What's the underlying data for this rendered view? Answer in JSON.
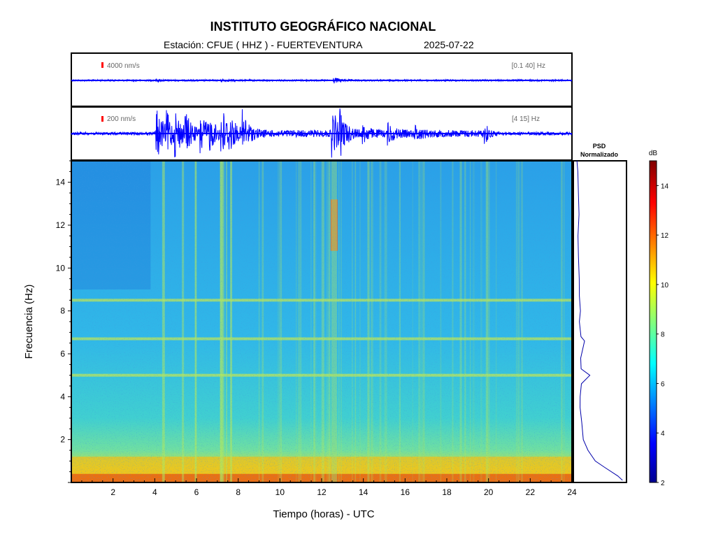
{
  "title": "INSTITUTO GEOGRÁFICO NACIONAL",
  "subtitle": "Estación:  CFUE ( HHZ ) - FUERTEVENTURA",
  "date": "2025-07-22",
  "chart_data": [
    {
      "type": "line",
      "name": "seismogram-broadband",
      "scale_label": "4000 nm/s",
      "filter_label": "[0.1 40] Hz",
      "x_range": [
        0,
        24
      ],
      "trace_color": "#0000ff",
      "scale_color": "#ff0000",
      "events": [
        {
          "t": 12.6,
          "amp": 0.12
        },
        {
          "t": 4.1,
          "amp": 0.05
        },
        {
          "t": 7.2,
          "amp": 0.05
        }
      ]
    },
    {
      "type": "line",
      "name": "seismogram-filtered",
      "scale_label": "200 nm/s",
      "filter_label": "[4 15] Hz",
      "x_range": [
        0,
        24
      ],
      "trace_color": "#0000ff",
      "events": [
        {
          "t": 4.1,
          "amp": 1.0
        },
        {
          "t": 4.6,
          "amp": 0.6
        },
        {
          "t": 5.0,
          "amp": 0.7
        },
        {
          "t": 5.5,
          "amp": 0.6
        },
        {
          "t": 6.2,
          "amp": 0.8
        },
        {
          "t": 6.6,
          "amp": 0.5
        },
        {
          "t": 7.2,
          "amp": 1.0
        },
        {
          "t": 7.6,
          "amp": 0.5
        },
        {
          "t": 8.2,
          "amp": 0.8
        },
        {
          "t": 12.5,
          "amp": 1.0
        },
        {
          "t": 12.9,
          "amp": 0.6
        },
        {
          "t": 14.0,
          "amp": 0.3
        },
        {
          "t": 15.2,
          "amp": 0.35
        },
        {
          "t": 16.5,
          "amp": 0.25
        },
        {
          "t": 19.8,
          "amp": 0.3
        }
      ]
    },
    {
      "type": "heatmap",
      "name": "spectrogram",
      "xlabel": "Tiempo (horas) - UTC",
      "ylabel": "Frecuencia  (Hz)",
      "xlim": [
        0,
        24
      ],
      "ylim": [
        0,
        15
      ],
      "x_ticks": [
        2,
        4,
        6,
        8,
        10,
        12,
        14,
        16,
        18,
        20,
        22,
        24
      ],
      "y_ticks": [
        2,
        4,
        6,
        8,
        10,
        12,
        14
      ],
      "colorbar": {
        "label": "dB",
        "range": [
          2,
          15
        ],
        "ticks": [
          2,
          4,
          6,
          8,
          10,
          12,
          14
        ]
      },
      "features": [
        {
          "kind": "low-frequency-band",
          "fmin": 0,
          "fmax": 1.2,
          "db": 11
        },
        {
          "kind": "harmonic-line",
          "f": 5.0,
          "db": 8.5
        },
        {
          "kind": "harmonic-line",
          "f": 6.7,
          "db": 7.5
        },
        {
          "kind": "harmonic-line",
          "f": 8.5,
          "db": 7.0
        },
        {
          "kind": "event",
          "t": 12.6,
          "fmin": 10.8,
          "fmax": 13.2,
          "db": 12.5
        },
        {
          "kind": "vertical-stripes",
          "t_start": 4.0,
          "t_end": 8.5,
          "db": 9
        }
      ]
    },
    {
      "type": "line",
      "name": "psd-normalized",
      "title": "PSD\nNormalizado",
      "xlim": [
        0,
        1
      ],
      "ylim": [
        0,
        15
      ],
      "points": [
        [
          0.95,
          0.1
        ],
        [
          0.85,
          0.3
        ],
        [
          0.6,
          0.7
        ],
        [
          0.4,
          1.0
        ],
        [
          0.25,
          1.5
        ],
        [
          0.17,
          2.0
        ],
        [
          0.13,
          2.8
        ],
        [
          0.11,
          3.5
        ],
        [
          0.1,
          4.0
        ],
        [
          0.12,
          4.6
        ],
        [
          0.3,
          5.0
        ],
        [
          0.14,
          5.3
        ],
        [
          0.12,
          5.8
        ],
        [
          0.2,
          6.6
        ],
        [
          0.13,
          6.8
        ],
        [
          0.1,
          7.5
        ],
        [
          0.12,
          8.0
        ],
        [
          0.1,
          8.7
        ],
        [
          0.09,
          9.5
        ],
        [
          0.08,
          10.5
        ],
        [
          0.07,
          11.5
        ],
        [
          0.08,
          12.5
        ],
        [
          0.06,
          13.5
        ],
        [
          0.05,
          14.5
        ],
        [
          0.04,
          15.0
        ]
      ]
    }
  ]
}
